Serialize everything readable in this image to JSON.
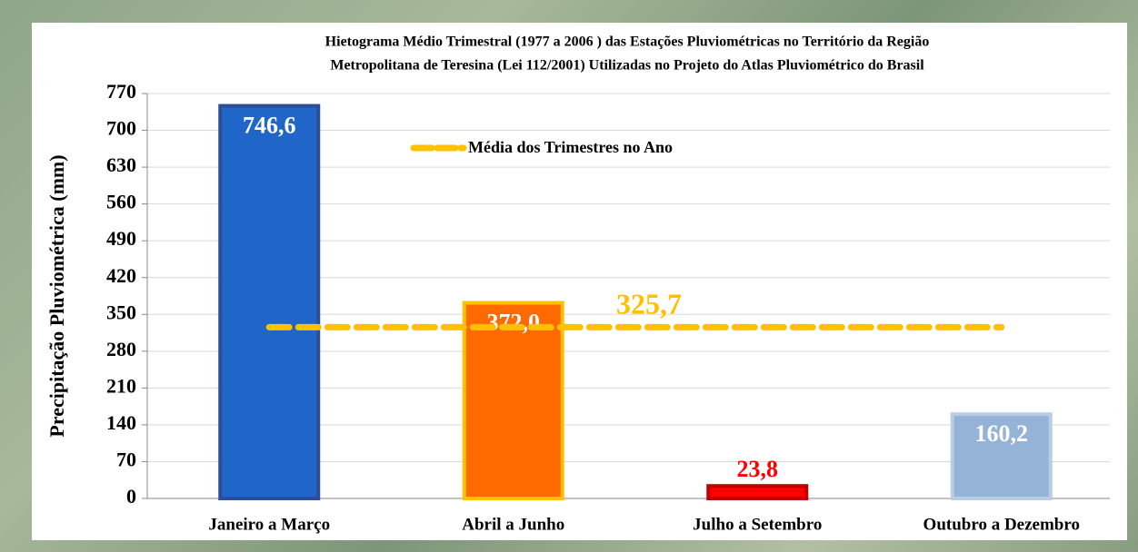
{
  "chart_data": {
    "type": "bar",
    "title": [
      "Hietograma Médio Trimestral  (1977 a 2006 ) das Estações Pluviométricas no Território da Região",
      "Metropolitana de Teresina (Lei 112/2001) Utilizadas no Projeto do Atlas Pluviométrico do Brasil"
    ],
    "y_label": "Precipitação Pluviométrica (mm)",
    "categories": [
      "Janeiro a Março",
      "Abril a Junho",
      "Julho a Setembro",
      "Outubro a Dezembro"
    ],
    "values": [
      746.6,
      372.0,
      23.8,
      160.2
    ],
    "value_labels": [
      "746,6",
      "372,0",
      "23,8",
      "160,2"
    ],
    "colors": [
      "#1f66c8",
      "#ff6a00",
      "#ff0000",
      "#95b3d7"
    ],
    "border_colors": [
      "#2b4f94",
      "#ffc000",
      "#c00000",
      "#b8cce4"
    ],
    "value_label_colors": [
      "#ffffff",
      "#ffffff",
      "#ff0000",
      "#ffffff"
    ],
    "mean": {
      "name": "Média dos Trimestres no Ano",
      "value": 325.7,
      "label": "325,7",
      "color": "#ffc000"
    },
    "ylim": [
      0,
      770
    ],
    "yticks": [
      0,
      70,
      140,
      210,
      280,
      350,
      420,
      490,
      560,
      630,
      700,
      770
    ],
    "grid": true
  }
}
